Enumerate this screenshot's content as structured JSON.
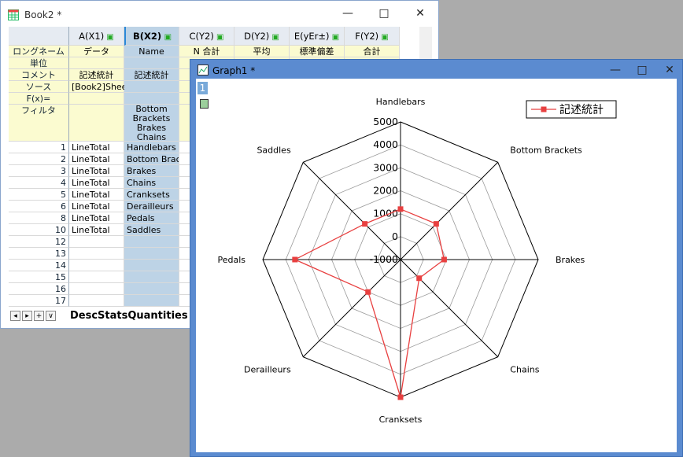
{
  "book": {
    "title": "Book2 *",
    "buttons": {
      "minimize": "—",
      "maximize": "□",
      "close": "✕"
    },
    "columns": [
      {
        "label": "A(X1)",
        "lock": true
      },
      {
        "label": "B(X2)",
        "lock": true,
        "selected": true
      },
      {
        "label": "C(Y2)",
        "lock": true
      },
      {
        "label": "D(Y2)",
        "lock": true
      },
      {
        "label": "E(yEr±)",
        "lock": true
      },
      {
        "label": "F(Y2)",
        "lock": true
      }
    ],
    "meta_rows": [
      {
        "label": "ロングネーム",
        "cells": [
          "データ",
          "Name",
          "N 合計",
          "平均",
          "標準偏差",
          "合計"
        ]
      },
      {
        "label": "単位",
        "cells": [
          "",
          "",
          "",
          "",
          "",
          ""
        ]
      },
      {
        "label": "コメント",
        "cells": [
          "記述統計",
          "記述統計",
          "記",
          "",
          "",
          ""
        ]
      },
      {
        "label": "ソース",
        "cells": [
          "[Book2]Sheet1",
          "",
          "",
          "",
          "",
          ""
        ]
      },
      {
        "label": "F(x)=",
        "cells": [
          "",
          "",
          "",
          "",
          "",
          ""
        ]
      },
      {
        "label": "フィルタ",
        "cells": [
          "",
          "Bottom\nBrackets\nBrakes\nChains",
          "",
          "",
          "",
          ""
        ]
      }
    ],
    "filter_lines": [
      "Bottom",
      "Brackets",
      "Brakes",
      "Chains"
    ],
    "data_rows": [
      {
        "n": "1",
        "a": "LineTotal",
        "b": "Handlebars"
      },
      {
        "n": "2",
        "a": "LineTotal",
        "b": "Bottom Brac"
      },
      {
        "n": "3",
        "a": "LineTotal",
        "b": "Brakes"
      },
      {
        "n": "4",
        "a": "LineTotal",
        "b": "Chains"
      },
      {
        "n": "5",
        "a": "LineTotal",
        "b": "Cranksets"
      },
      {
        "n": "6",
        "a": "LineTotal",
        "b": "Derailleurs"
      },
      {
        "n": "8",
        "a": "LineTotal",
        "b": "Pedals"
      },
      {
        "n": "10",
        "a": "LineTotal",
        "b": "Saddles"
      },
      {
        "n": "12",
        "a": "",
        "b": ""
      },
      {
        "n": "13",
        "a": "",
        "b": ""
      },
      {
        "n": "14",
        "a": "",
        "b": ""
      },
      {
        "n": "15",
        "a": "",
        "b": ""
      },
      {
        "n": "16",
        "a": "",
        "b": ""
      },
      {
        "n": "17",
        "a": "",
        "b": ""
      }
    ],
    "sheet_tab": "DescStatsQuantities",
    "tab_buttons": [
      "◂",
      "▸",
      "+",
      "∨"
    ]
  },
  "graph": {
    "title": "Graph1 *",
    "layer": "1",
    "buttons": {
      "minimize": "—",
      "maximize": "□",
      "close": "✕"
    }
  },
  "chart_data": {
    "type": "radar",
    "categories": [
      "Handlebars",
      "Bottom Brackets",
      "Brakes",
      "Chains",
      "Cranksets",
      "Derailleurs",
      "Pedals",
      "Saddles"
    ],
    "series": [
      {
        "name": "記述統計",
        "values": [
          1200,
          1200,
          900,
          150,
          5000,
          1000,
          3600,
          1200
        ]
      }
    ],
    "radial_ticks": [
      "5000",
      "4000",
      "3000",
      "2000",
      "1000",
      "0",
      "-1000"
    ],
    "rlim": [
      -1000,
      5000
    ],
    "legend": "top-right",
    "series_color": "#e84040",
    "grid": true
  }
}
